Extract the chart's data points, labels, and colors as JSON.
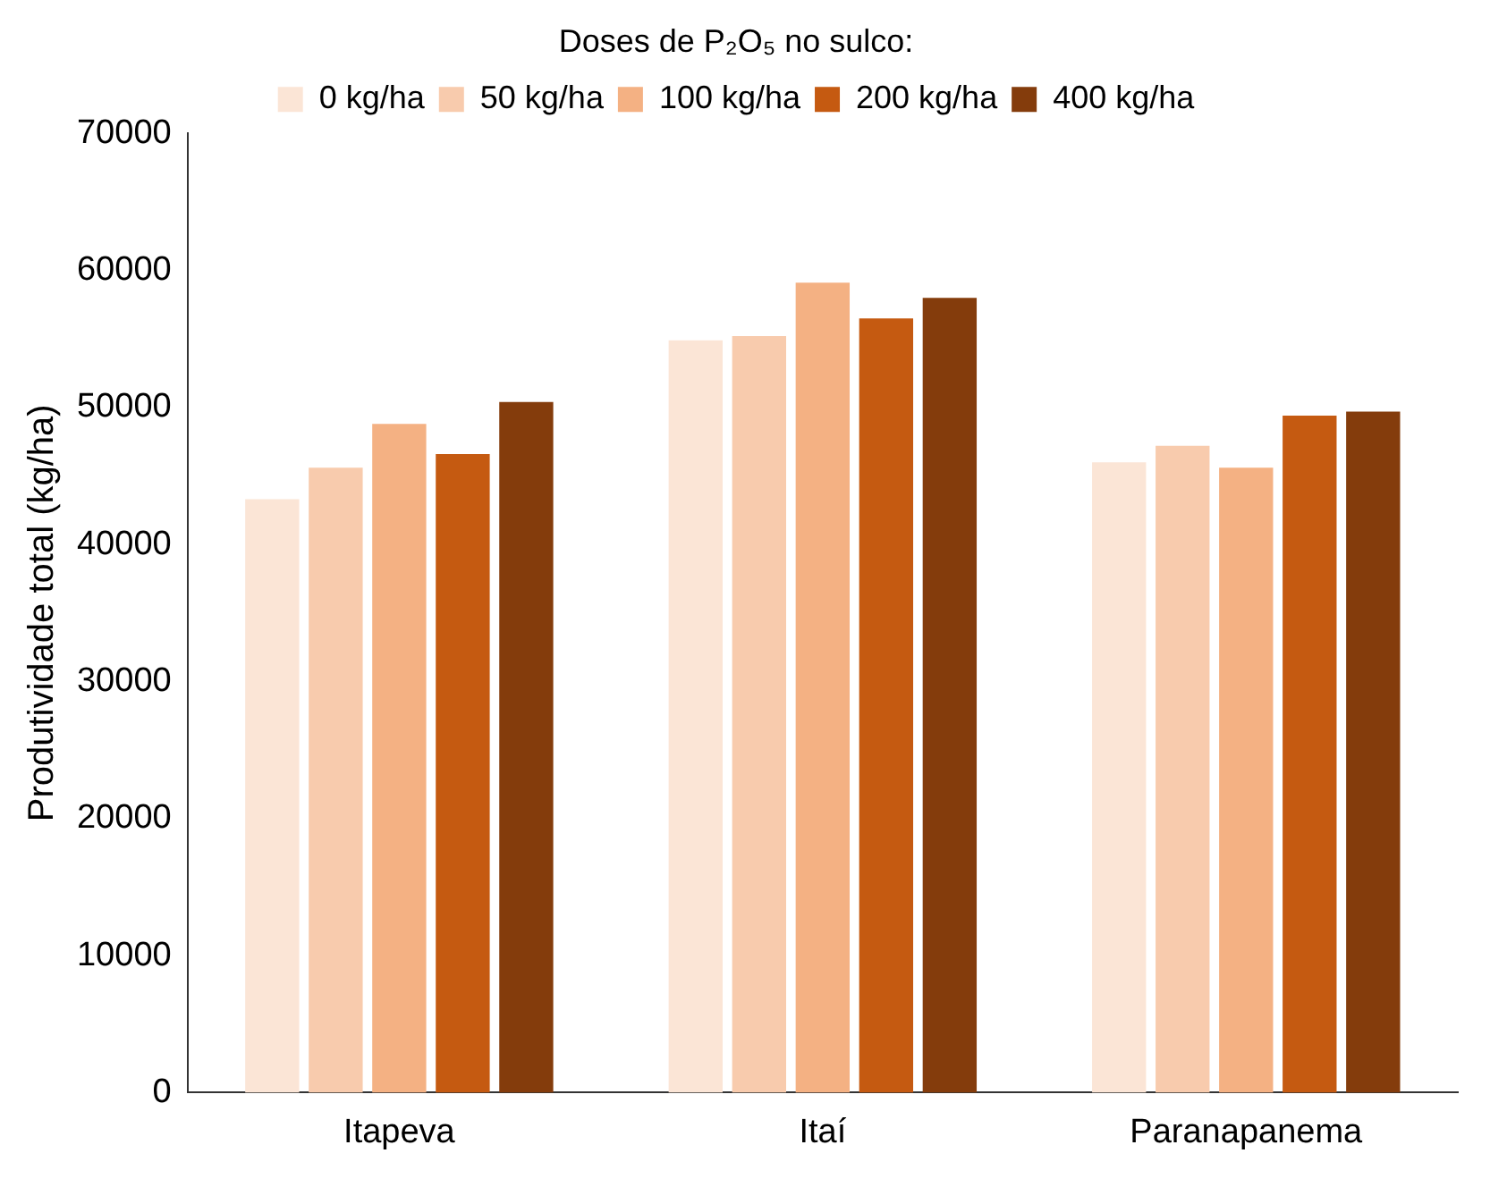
{
  "chart_data": {
    "type": "bar",
    "ylabel": "Produtividade total (kg/ha)",
    "legend_title": "Doses de P₂O₅ no sulco:",
    "categories": [
      "Itapeva",
      "Itaí",
      "Paranapanema"
    ],
    "series": [
      {
        "name": "0 kg/ha",
        "color": "#fbe5d6",
        "values": [
          43300,
          54900,
          46000
        ]
      },
      {
        "name": "50 kg/ha",
        "color": "#f8cbad",
        "values": [
          45600,
          55200,
          47200
        ]
      },
      {
        "name": "100 kg/ha",
        "color": "#f4b183",
        "values": [
          48800,
          59100,
          45600
        ]
      },
      {
        "name": "200 kg/ha",
        "color": "#c55a11",
        "values": [
          46600,
          56500,
          49400
        ]
      },
      {
        "name": "400 kg/ha",
        "color": "#843c0c",
        "values": [
          50400,
          58000,
          49700
        ]
      }
    ],
    "ylim": [
      0,
      70000
    ],
    "yticks": [
      0,
      10000,
      20000,
      30000,
      40000,
      50000,
      60000,
      70000
    ],
    "grid": false,
    "legend": "top"
  }
}
